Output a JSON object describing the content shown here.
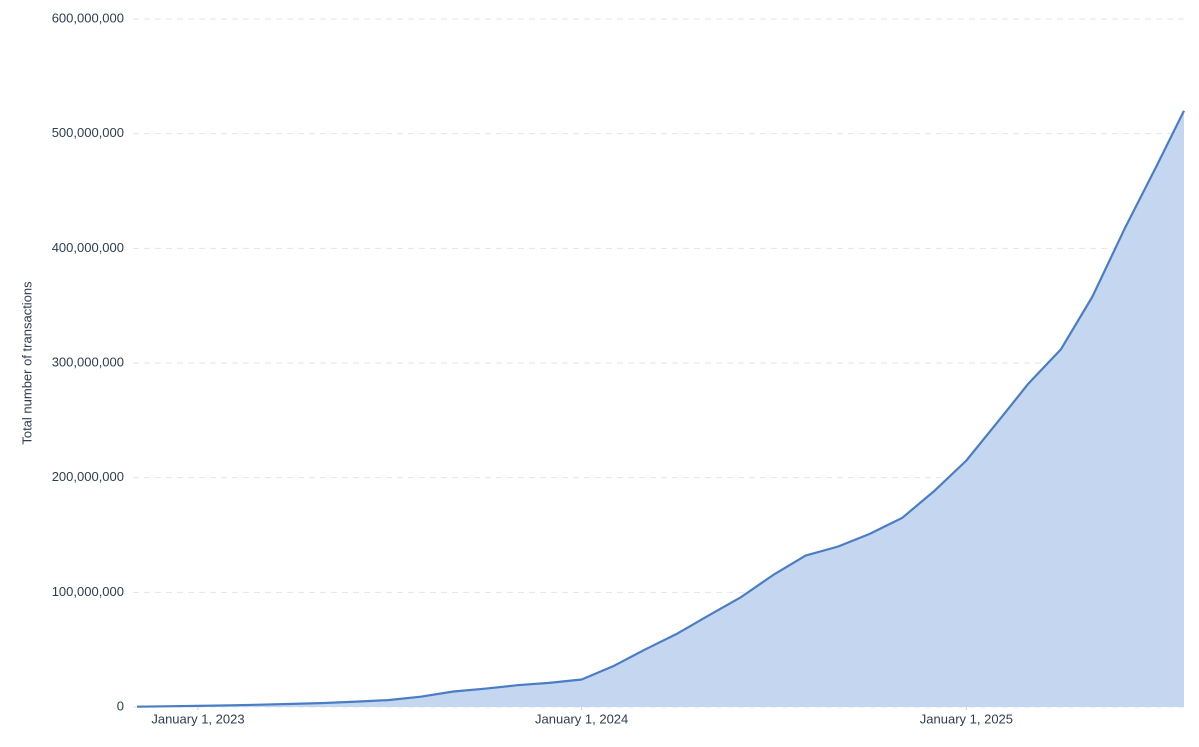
{
  "chart_data": {
    "type": "area",
    "y_label": "Total number of transactions",
    "x": [
      "2022-11-04",
      "2022-12-01",
      "2023-01-01",
      "2023-02-01",
      "2023-03-01",
      "2023-04-01",
      "2023-05-01",
      "2023-06-01",
      "2023-07-01",
      "2023-08-01",
      "2023-09-01",
      "2023-10-01",
      "2023-11-01",
      "2023-12-01",
      "2024-01-01",
      "2024-02-01",
      "2024-03-01",
      "2024-04-01",
      "2024-05-01",
      "2024-06-01",
      "2024-07-01",
      "2024-08-01",
      "2024-09-01",
      "2024-10-01",
      "2024-11-01",
      "2024-12-01",
      "2025-01-01",
      "2025-02-01",
      "2025-03-01",
      "2025-04-01",
      "2025-05-01",
      "2025-06-01",
      "2025-07-01",
      "2025-07-27"
    ],
    "values": [
      300000,
      600000,
      1000000,
      1500000,
      2000000,
      2700000,
      3500000,
      4700000,
      6000000,
      9000000,
      13500000,
      16000000,
      19000000,
      21000000,
      24000000,
      36000000,
      50000000,
      64000000,
      80000000,
      96000000,
      115000000,
      132000000,
      140000000,
      151000000,
      165000000,
      188000000,
      215000000,
      250000000,
      282000000,
      312000000,
      358000000,
      418000000,
      472000000,
      520000000
    ],
    "color": "#4a7dc4",
    "fill": "#c5d7f0",
    "xlim": [
      "2022-11-04",
      "2025-07-27"
    ],
    "xticks": [
      {
        "value": "2023-01-01",
        "label": "January 1, 2023"
      },
      {
        "value": "2024-01-01",
        "label": "January 1, 2024"
      },
      {
        "value": "2025-01-01",
        "label": "January 1, 2025"
      }
    ],
    "ylim": [
      0,
      600000000
    ],
    "yticks": [
      0,
      {
        "value": 100000000,
        "label": "100,000,000"
      },
      {
        "value": 200000000,
        "label": "200,000,000"
      },
      {
        "value": 300000000,
        "label": "300,000,000"
      },
      {
        "value": 400000000,
        "label": "400,000,000"
      },
      {
        "value": 500000000,
        "label": "500,000,000"
      },
      {
        "value": 600000000,
        "label": "600,000,000"
      }
    ],
    "grid": true
  }
}
